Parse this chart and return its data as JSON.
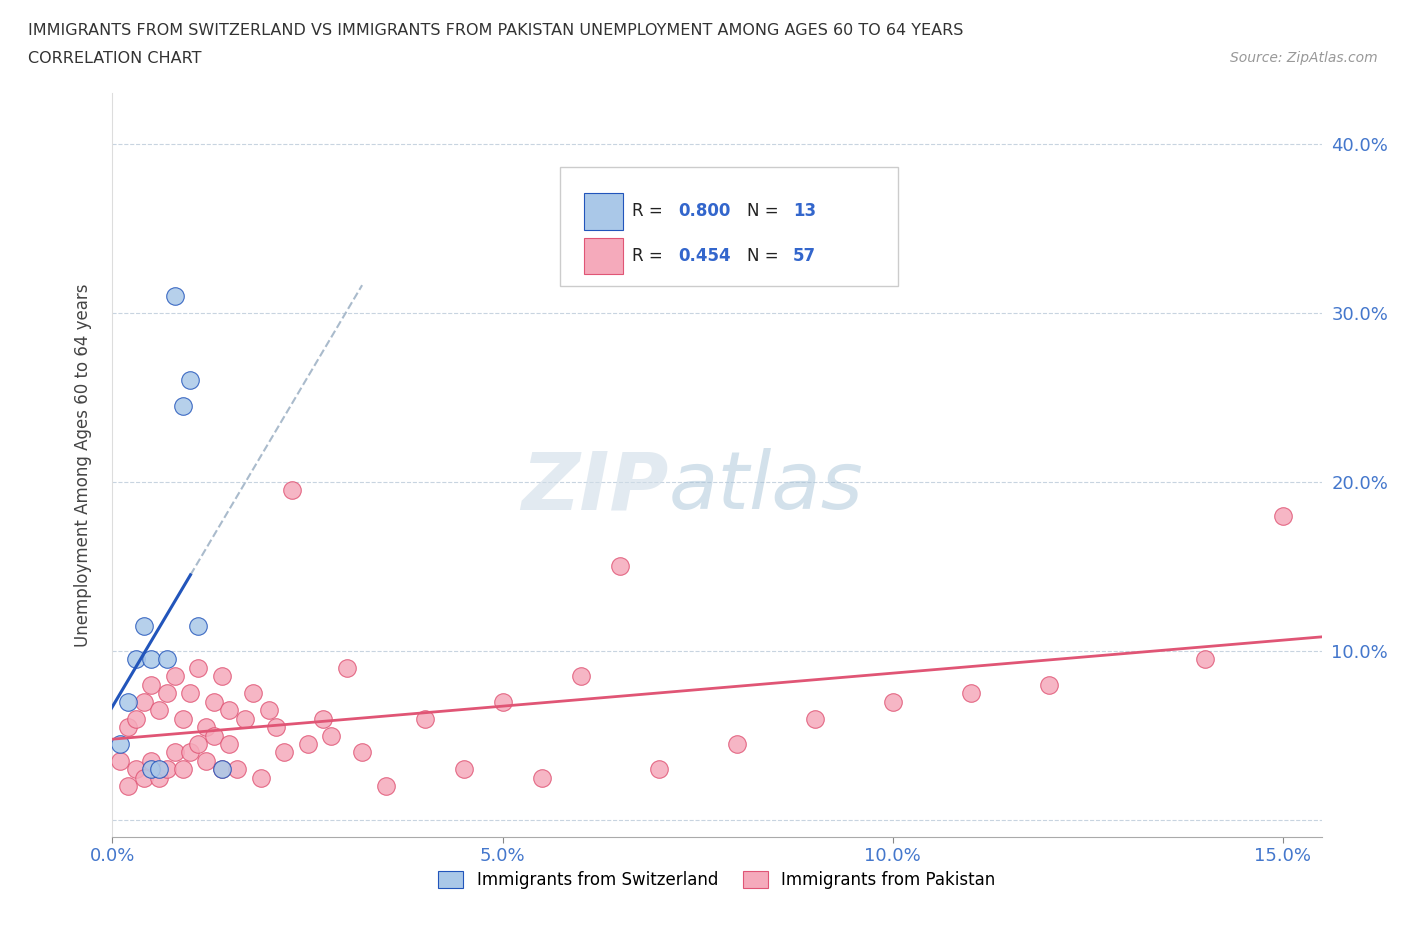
{
  "title_line1": "IMMIGRANTS FROM SWITZERLAND VS IMMIGRANTS FROM PAKISTAN UNEMPLOYMENT AMONG AGES 60 TO 64 YEARS",
  "title_line2": "CORRELATION CHART",
  "source": "Source: ZipAtlas.com",
  "ylabel": "Unemployment Among Ages 60 to 64 years",
  "xlim": [
    0.0,
    0.155
  ],
  "ylim": [
    -0.01,
    0.43
  ],
  "xticks": [
    0.0,
    0.05,
    0.1,
    0.15
  ],
  "xtick_labels": [
    "0.0%",
    "5.0%",
    "10.0%",
    "15.0%"
  ],
  "yticks": [
    0.0,
    0.1,
    0.2,
    0.3,
    0.4
  ],
  "ytick_labels": [
    "",
    "10.0%",
    "20.0%",
    "30.0%",
    "40.0%"
  ],
  "legend_label1": "Immigrants from Switzerland",
  "legend_label2": "Immigrants from Pakistan",
  "r1": "0.800",
  "n1": "13",
  "r2": "0.454",
  "n2": "57",
  "color_swiss": "#aac8e8",
  "color_pakistan": "#f5aabb",
  "line_color_swiss": "#2255bb",
  "line_color_pakistan": "#e05575",
  "dashed_line_color": "#aabbcc",
  "background_color": "#ffffff",
  "watermark_zip": "ZIP",
  "watermark_atlas": "atlas",
  "swiss_x": [
    0.001,
    0.002,
    0.003,
    0.004,
    0.005,
    0.005,
    0.006,
    0.007,
    0.008,
    0.009,
    0.01,
    0.011,
    0.014
  ],
  "swiss_y": [
    0.045,
    0.07,
    0.095,
    0.115,
    0.03,
    0.095,
    0.03,
    0.095,
    0.31,
    0.245,
    0.26,
    0.115,
    0.03
  ],
  "pakistan_x": [
    0.001,
    0.002,
    0.002,
    0.003,
    0.003,
    0.004,
    0.004,
    0.005,
    0.005,
    0.006,
    0.006,
    0.007,
    0.007,
    0.008,
    0.008,
    0.009,
    0.009,
    0.01,
    0.01,
    0.011,
    0.011,
    0.012,
    0.012,
    0.013,
    0.013,
    0.014,
    0.014,
    0.015,
    0.015,
    0.016,
    0.017,
    0.018,
    0.019,
    0.02,
    0.021,
    0.022,
    0.023,
    0.025,
    0.027,
    0.028,
    0.03,
    0.032,
    0.035,
    0.04,
    0.045,
    0.05,
    0.055,
    0.06,
    0.065,
    0.07,
    0.08,
    0.09,
    0.1,
    0.11,
    0.12,
    0.14,
    0.15
  ],
  "pakistan_y": [
    0.035,
    0.02,
    0.055,
    0.03,
    0.06,
    0.025,
    0.07,
    0.035,
    0.08,
    0.025,
    0.065,
    0.03,
    0.075,
    0.04,
    0.085,
    0.03,
    0.06,
    0.04,
    0.075,
    0.045,
    0.09,
    0.035,
    0.055,
    0.05,
    0.07,
    0.03,
    0.085,
    0.045,
    0.065,
    0.03,
    0.06,
    0.075,
    0.025,
    0.065,
    0.055,
    0.04,
    0.195,
    0.045,
    0.06,
    0.05,
    0.09,
    0.04,
    0.02,
    0.06,
    0.03,
    0.07,
    0.025,
    0.085,
    0.15,
    0.03,
    0.045,
    0.06,
    0.07,
    0.075,
    0.08,
    0.095,
    0.18
  ]
}
